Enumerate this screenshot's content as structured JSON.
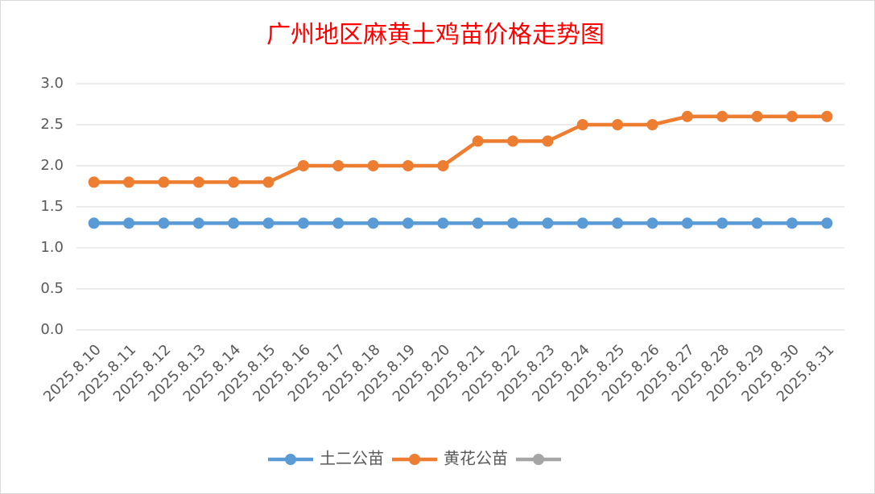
{
  "chart_data": {
    "type": "line",
    "title": "广州地区麻黄土鸡苗价格走势图",
    "categories": [
      "2025.8.10",
      "2025.8.11",
      "2025.8.12",
      "2025.8.13",
      "2025.8.14",
      "2025.8.15",
      "2025.8.16",
      "2025.8.17",
      "2025.8.18",
      "2025.8.19",
      "2025.8.20",
      "2025.8.21",
      "2025.8.22",
      "2025.8.23",
      "2025.8.24",
      "2025.8.25",
      "2025.8.26",
      "2025.8.27",
      "2025.8.28",
      "2025.8.29",
      "2025.8.30",
      "2025.8.31"
    ],
    "series": [
      {
        "name": "土二公苗",
        "color": "#5b9bd5",
        "values": [
          1.3,
          1.3,
          1.3,
          1.3,
          1.3,
          1.3,
          1.3,
          1.3,
          1.3,
          1.3,
          1.3,
          1.3,
          1.3,
          1.3,
          1.3,
          1.3,
          1.3,
          1.3,
          1.3,
          1.3,
          1.3,
          1.3
        ]
      },
      {
        "name": "黄花公苗",
        "color": "#ed7d31",
        "values": [
          1.8,
          1.8,
          1.8,
          1.8,
          1.8,
          1.8,
          2.0,
          2.0,
          2.0,
          2.0,
          2.0,
          2.3,
          2.3,
          2.3,
          2.5,
          2.5,
          2.5,
          2.6,
          2.6,
          2.6,
          2.6,
          2.6
        ]
      },
      {
        "color": "#a5a5a5",
        "values": [
          null,
          null,
          null,
          null,
          null,
          null,
          null,
          null,
          null,
          null,
          null,
          null,
          null,
          null,
          null,
          null,
          null,
          null,
          null,
          null,
          null,
          null
        ]
      }
    ],
    "ylim": [
      0,
      3
    ],
    "yticks": [
      {
        "value": 0,
        "label": "0.0"
      },
      {
        "value": 0.5,
        "label": "0.5"
      },
      {
        "value": 1,
        "label": "1.0"
      },
      {
        "value": 1.5,
        "label": "1.5"
      },
      {
        "value": 2,
        "label": "2.0"
      },
      {
        "value": 2.5,
        "label": "2.5"
      },
      {
        "value": 3,
        "label": "3.0"
      }
    ],
    "grid": true,
    "legend": "bottom"
  }
}
